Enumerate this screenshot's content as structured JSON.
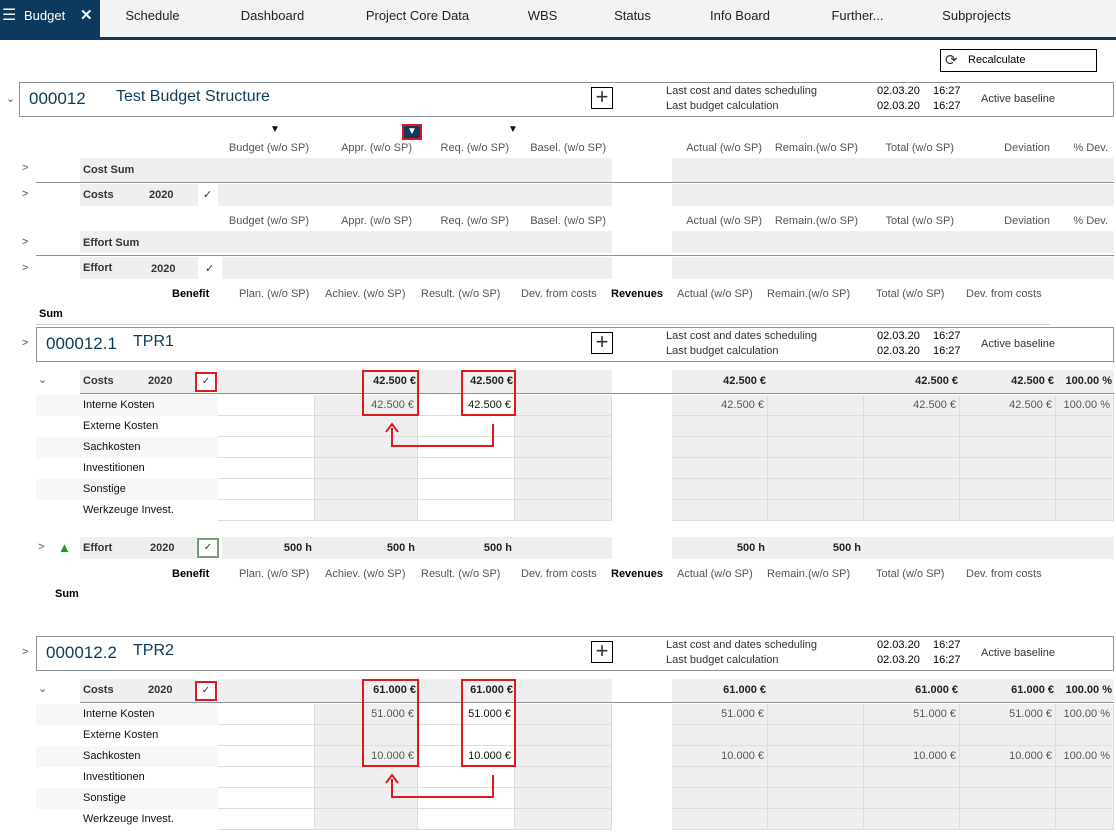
{
  "tabs": [
    {
      "label": "Budget",
      "active": true
    },
    {
      "label": "Schedule"
    },
    {
      "label": "Dashboard"
    },
    {
      "label": "Project Core Data"
    },
    {
      "label": "WBS"
    },
    {
      "label": "Status"
    },
    {
      "label": "Info Board"
    },
    {
      "label": "Further..."
    },
    {
      "label": "Subprojects"
    }
  ],
  "recalculate_label": "Recalculate",
  "info": {
    "sched_label": "Last cost and dates scheduling",
    "calc_label": "Last budget calculation",
    "baseline": "Active baseline"
  },
  "colors": {
    "accent": "#0d3a5c",
    "highlight": "#e0191f",
    "effort_up": "#1a9a1a"
  },
  "cost_headers": [
    "Budget (w/o SP)",
    "Appr. (w/o SP)",
    "Req. (w/o SP)",
    "Basel. (w/o SP)",
    "Actual (w/o SP)",
    "Remain.(w/o SP)",
    "Total (w/o SP)",
    "Deviation",
    "% Dev."
  ],
  "benefit_headers": {
    "benefit": "Benefit",
    "cols": [
      "Plan. (w/o SP)",
      "Achiev. (w/o SP)",
      "Result. (w/o SP)",
      "Dev. from costs"
    ],
    "revenues": "Revenues",
    "cols2": [
      "Actual (w/o SP)",
      "Remain.(w/o SP)",
      "Total (w/o SP)",
      "Dev. from costs"
    ],
    "sum": "Sum"
  },
  "root": {
    "id": "000012",
    "name": "Test Budget Structure",
    "sched_date": "02.03.20",
    "sched_time": "16:27",
    "calc_date": "02.03.20",
    "calc_time": "16:27",
    "rows": {
      "cost_sum": "Cost Sum",
      "costs": "Costs",
      "effort_sum": "Effort Sum",
      "effort": "Effort",
      "year": "2020"
    }
  },
  "projects": [
    {
      "id": "000012.1",
      "name": "TPR1",
      "sched_date": "02.03.20",
      "sched_time": "16:27",
      "calc_date": "02.03.20",
      "calc_time": "16:27",
      "costs_label": "Costs",
      "year": "2020",
      "costs_total": {
        "appr": "42.500 €",
        "req": "42.500 €",
        "actual": "42.500 €",
        "total": "42.500 €",
        "deviation": "42.500 €",
        "pct": "100.00 %"
      },
      "items": [
        {
          "name": "Interne Kosten",
          "appr": "42.500 €",
          "req": "42.500 €",
          "actual": "42.500 €",
          "total": "42.500 €",
          "deviation": "42.500 €",
          "pct": "100.00 %"
        },
        {
          "name": "Externe Kosten"
        },
        {
          "name": "Sachkosten"
        },
        {
          "name": "Investitionen"
        },
        {
          "name": "Sonstige"
        },
        {
          "name": "Werkzeuge Invest."
        }
      ],
      "effort": {
        "label": "Effort",
        "year": "2020",
        "budget": "500 h",
        "appr": "500 h",
        "req": "500 h",
        "actual": "500 h",
        "remain": "500 h"
      }
    },
    {
      "id": "000012.2",
      "name": "TPR2",
      "sched_date": "02.03.20",
      "sched_time": "16:27",
      "calc_date": "02.03.20",
      "calc_time": "16:27",
      "costs_label": "Costs",
      "year": "2020",
      "costs_total": {
        "appr": "61.000 €",
        "req": "61.000 €",
        "actual": "61.000 €",
        "total": "61.000 €",
        "deviation": "61.000 €",
        "pct": "100.00 %"
      },
      "items": [
        {
          "name": "Interne Kosten",
          "appr": "51.000 €",
          "req": "51.000 €",
          "actual": "51.000 €",
          "total": "51.000 €",
          "deviation": "51.000 €",
          "pct": "100.00 %"
        },
        {
          "name": "Externe Kosten"
        },
        {
          "name": "Sachkosten",
          "appr": "10.000 €",
          "req": "10.000 €",
          "actual": "10.000 €",
          "total": "10.000 €",
          "deviation": "10.000 €",
          "pct": "100.00 %"
        },
        {
          "name": "Investitionen"
        },
        {
          "name": "Sonstige"
        },
        {
          "name": "Werkzeuge Invest."
        }
      ]
    }
  ]
}
